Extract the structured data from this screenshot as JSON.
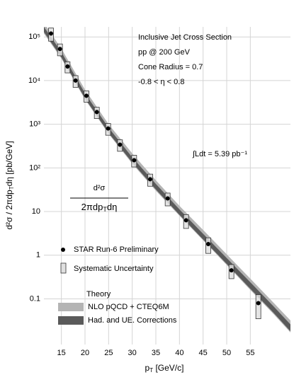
{
  "chart_data": {
    "type": "scatter",
    "title": "Inclusive Jet Cross Section",
    "annotations": [
      "pp @ 200 GeV",
      "Cone Radius = 0.7",
      "-0.8 < η < 0.8",
      "∫Ldt = 5.39 pb⁻¹"
    ],
    "formula": {
      "numerator": "d²σ",
      "denominator": [
        "2πdp",
        "T",
        "dη"
      ]
    },
    "x_label": [
      "p",
      "T",
      " [GeV/c]"
    ],
    "y_label": [
      "d²σ / 2πdp",
      "T",
      "dη [pb/GeV]"
    ],
    "xlim": [
      11.3,
      63.5
    ],
    "xticks": [
      15,
      20,
      25,
      30,
      35,
      40,
      45,
      50,
      55
    ],
    "ylim": [
      0.009,
      170000
    ],
    "yticks": [
      {
        "value": 100000,
        "label": "10⁵"
      },
      {
        "value": 10000,
        "label": "10⁴"
      },
      {
        "value": 1000,
        "label": "10³"
      },
      {
        "value": 100,
        "label": "10²"
      },
      10,
      1,
      0.1
    ],
    "log_y": true,
    "grid": true,
    "points": {
      "name": "STAR Run-6 Preliminary",
      "color": "#000000",
      "x": [
        12.8,
        14.7,
        16.3,
        18.0,
        20.3,
        22.5,
        24.9,
        27.4,
        30.4,
        33.8,
        37.5,
        41.4,
        46.1,
        51.0,
        56.7
      ],
      "values": [
        120000,
        53000,
        21000,
        10000,
        4500,
        1900,
        800,
        340,
        150,
        55,
        20,
        6.3,
        1.8,
        0.45,
        0.08
      ],
      "sys_errors": [
        40000,
        16000,
        6000,
        3000,
        1300,
        550,
        240,
        100,
        45,
        17,
        6.5,
        2.2,
        0.7,
        0.16,
        0.045
      ]
    },
    "sys_label": "Systematic Uncertainty",
    "theory_title": "Theory",
    "bands": [
      {
        "name": "NLO pQCD + CTEQ6M",
        "color": "#b4b4b4",
        "x": [
          11.3,
          15,
          20,
          25,
          30,
          35,
          40,
          45,
          50,
          55,
          60,
          63.5
        ],
        "low": [
          120000,
          32000,
          3700,
          600,
          125,
          30,
          8,
          2.2,
          0.6,
          0.16,
          0.044,
          0.017
        ],
        "high": [
          210000,
          54000,
          6200,
          1000,
          215,
          52,
          13.5,
          3.8,
          1.05,
          0.29,
          0.08,
          0.032
        ]
      },
      {
        "name": "Had. and UE. Corrections",
        "color": "#5a5a5a",
        "x": [
          11.3,
          15,
          20,
          25,
          30,
          35,
          40,
          45,
          50,
          55,
          60,
          63.5
        ],
        "low": [
          130000,
          34000,
          3900,
          630,
          133,
          32,
          8.4,
          2.3,
          0.63,
          0.17,
          0.047,
          0.018
        ],
        "high": [
          170000,
          45000,
          5100,
          830,
          175,
          43,
          11.2,
          3.1,
          0.86,
          0.24,
          0.066,
          0.026
        ]
      }
    ]
  }
}
